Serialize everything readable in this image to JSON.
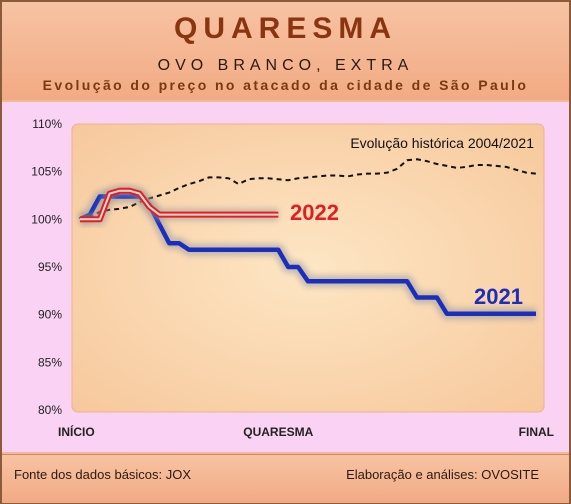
{
  "header": {
    "title": "QUARESMA",
    "subtitle": "OVO BRANCO, EXTRA",
    "subtitle2": "Evolução do preço no atacado da cidade de São Paulo"
  },
  "footer": {
    "source": "Fonte dos dados básicos: JOX",
    "author": "Elaboração e análises: OVOSITE"
  },
  "chart_data": {
    "type": "line",
    "ylim": [
      80,
      110
    ],
    "y_ticks": [
      "80%",
      "85%",
      "90%",
      "95%",
      "100%",
      "105%",
      "110%"
    ],
    "y_tick_values": [
      80,
      85,
      90,
      95,
      100,
      105,
      110
    ],
    "x_tick_labels": [
      "INÍCIO",
      "QUARESMA",
      "FINAL"
    ],
    "x_range": [
      0,
      46
    ],
    "x_tick_positions": [
      0,
      20,
      46
    ],
    "annotation": "Evolução histórica 2004/2021",
    "series": [
      {
        "name": "2022",
        "color": "#e02020",
        "x": [
          0,
          1,
          2,
          3,
          4,
          5,
          6,
          7,
          8,
          9,
          10,
          11,
          12,
          13,
          14,
          15,
          16,
          17,
          18,
          19,
          20
        ],
        "values": [
          100,
          100,
          100,
          102.7,
          103,
          103,
          102.7,
          101.3,
          100.5,
          100.5,
          100.5,
          100.5,
          100.5,
          100.5,
          100.5,
          100.5,
          100.5,
          100.5,
          100.5,
          100.5,
          100.5
        ]
      },
      {
        "name": "2021",
        "color": "#1a2fbf",
        "x": [
          0,
          1,
          2,
          3,
          4,
          5,
          6,
          7,
          8,
          9,
          10,
          11,
          12,
          13,
          14,
          15,
          16,
          17,
          18,
          19,
          20,
          21,
          22,
          23,
          24,
          25,
          26,
          27,
          28,
          29,
          30,
          31,
          32,
          33,
          34,
          35,
          36,
          37,
          38,
          39,
          40,
          41,
          42,
          43,
          44,
          45,
          46
        ],
        "values": [
          100,
          100.5,
          102.4,
          102.4,
          102.4,
          102.4,
          102.4,
          101.5,
          99.5,
          97.5,
          97.5,
          96.8,
          96.8,
          96.8,
          96.8,
          96.8,
          96.8,
          96.8,
          96.8,
          96.8,
          96.8,
          95,
          95,
          93.5,
          93.5,
          93.5,
          93.5,
          93.5,
          93.5,
          93.5,
          93.5,
          93.5,
          93.5,
          93.5,
          91.8,
          91.8,
          91.8,
          90.1,
          90.1,
          90.1,
          90.1,
          90.1,
          90.1,
          90.1,
          90.1,
          90.1,
          90.1
        ]
      },
      {
        "name": "Evolução histórica 2004/2021",
        "color": "#111111",
        "dashed": true,
        "x": [
          0,
          1,
          2,
          3,
          4,
          5,
          6,
          7,
          8,
          9,
          10,
          11,
          12,
          13,
          14,
          15,
          16,
          17,
          18,
          19,
          20,
          21,
          22,
          23,
          24,
          25,
          26,
          27,
          28,
          29,
          30,
          31,
          32,
          33,
          34,
          35,
          36,
          37,
          38,
          39,
          40,
          41,
          42,
          43,
          44,
          45,
          46
        ],
        "values": [
          100,
          100.2,
          100.8,
          101,
          101.1,
          101.3,
          101.8,
          102.2,
          102.5,
          102.8,
          103.3,
          103.7,
          104,
          104.4,
          104.4,
          104.3,
          103.7,
          104.2,
          104.3,
          104.3,
          104.2,
          104.1,
          104.3,
          104.4,
          104.5,
          104.6,
          104.6,
          104.5,
          104.7,
          104.8,
          104.8,
          104.9,
          105.3,
          106.2,
          106.3,
          106.1,
          105.8,
          105.6,
          105.4,
          105.5,
          105.7,
          105.7,
          105.6,
          105.5,
          105.2,
          104.9,
          104.8
        ]
      }
    ]
  }
}
